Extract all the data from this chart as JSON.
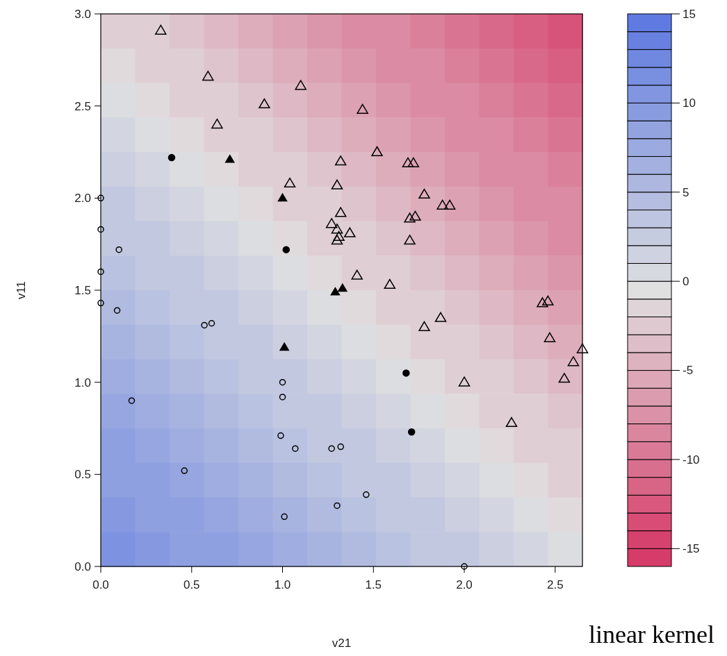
{
  "chart_data": [
    {
      "type": "heatmap",
      "categories": [
        null,
        null,
        null,
        null,
        null,
        null,
        null,
        null,
        null,
        null,
        null,
        null,
        null,
        null
      ],
      "y_categories": [
        null,
        null,
        null,
        null,
        null,
        null,
        null,
        null,
        null,
        null,
        null,
        null,
        null,
        null,
        null,
        null
      ],
      "clim": [
        -16,
        15
      ],
      "cticks": [
        -15,
        -10,
        -5,
        0,
        5,
        10,
        15
      ],
      "colors": [
        "#d63c6a",
        "#e0e0e0",
        "#5b77e0"
      ],
      "cells": [
        [
          -2,
          -2,
          -3,
          -4,
          -5,
          -6,
          -7,
          -8,
          -8,
          -9,
          -10,
          -11,
          -12,
          -13
        ],
        [
          -1,
          -2,
          -2,
          -3,
          -4,
          -5,
          -6,
          -7,
          -8,
          -8,
          -9,
          -10,
          -11,
          -12
        ],
        [
          0,
          -1,
          -2,
          -2,
          -3,
          -4,
          -5,
          -6,
          -7,
          -8,
          -8,
          -9,
          -10,
          -11
        ],
        [
          1,
          0,
          -1,
          -2,
          -2,
          -3,
          -4,
          -5,
          -6,
          -7,
          -8,
          -8,
          -9,
          -10
        ],
        [
          2,
          1,
          0,
          -1,
          -2,
          -2,
          -3,
          -4,
          -5,
          -6,
          -7,
          -8,
          -8,
          -9
        ],
        [
          3,
          2,
          1,
          0,
          -1,
          -2,
          -2,
          -3,
          -4,
          -5,
          -6,
          -7,
          -8,
          -8
        ],
        [
          3,
          3,
          2,
          1,
          0,
          -1,
          -2,
          -2,
          -3,
          -4,
          -5,
          -6,
          -7,
          -8
        ],
        [
          4,
          3,
          3,
          2,
          1,
          0,
          -1,
          -2,
          -2,
          -3,
          -4,
          -5,
          -6,
          -7
        ],
        [
          5,
          4,
          3,
          3,
          2,
          1,
          0,
          -1,
          -2,
          -2,
          -3,
          -4,
          -5,
          -6
        ],
        [
          6,
          5,
          4,
          3,
          3,
          2,
          1,
          0,
          -1,
          -2,
          -2,
          -3,
          -4,
          -5
        ],
        [
          7,
          6,
          5,
          4,
          3,
          3,
          2,
          1,
          0,
          -1,
          -2,
          -2,
          -3,
          -4
        ],
        [
          8,
          7,
          6,
          5,
          4,
          3,
          3,
          2,
          1,
          0,
          -1,
          -2,
          -2,
          -3
        ],
        [
          9,
          8,
          7,
          6,
          5,
          4,
          3,
          3,
          2,
          1,
          0,
          -1,
          -2,
          -2
        ],
        [
          9,
          9,
          8,
          7,
          6,
          5,
          4,
          3,
          3,
          2,
          1,
          0,
          -1,
          -2
        ],
        [
          10,
          9,
          9,
          8,
          7,
          6,
          5,
          4,
          3,
          3,
          2,
          1,
          0,
          -1
        ],
        [
          11,
          10,
          9,
          9,
          8,
          7,
          6,
          5,
          4,
          3,
          3,
          2,
          1,
          0
        ]
      ]
    },
    {
      "type": "scatter",
      "xlabel": "v21",
      "ylabel": "v11",
      "annotations": [
        "linear kernel"
      ],
      "xlim": [
        0,
        2.65
      ],
      "ylim": [
        0,
        3
      ],
      "xticks": [
        {
          "value": 0,
          "label": "0.0"
        },
        {
          "value": 0.5,
          "label": "0.5"
        },
        {
          "value": 1,
          "label": "1.0"
        },
        {
          "value": 1.5,
          "label": "1.5"
        },
        {
          "value": 2,
          "label": "2.0"
        },
        {
          "value": 2.5,
          "label": "2.5"
        }
      ],
      "yticks": [
        {
          "value": 0,
          "label": "0.0"
        },
        {
          "value": 0.5,
          "label": "0.5"
        },
        {
          "value": 1,
          "label": "1.0"
        },
        {
          "value": 1.5,
          "label": "1.5"
        },
        {
          "value": 2,
          "label": "2.0"
        },
        {
          "value": 2.5,
          "label": "2.5"
        },
        {
          "value": 3,
          "label": "3.0"
        }
      ],
      "series": [
        {
          "type": "scatter",
          "marker": "circle",
          "color": "#000000",
          "x": [
            0,
            0,
            0.1,
            0,
            0,
            0.09,
            0.57,
            0.61,
            0.17,
            1.0,
            1.0,
            0.99,
            1.07,
            1.27,
            1.32,
            0.46,
            1.46,
            1.3,
            1.01,
            2.0
          ],
          "values": [
            2.0,
            1.83,
            1.72,
            1.6,
            1.43,
            1.39,
            1.31,
            1.32,
            0.9,
            1.0,
            0.92,
            0.71,
            0.64,
            0.64,
            0.65,
            0.52,
            0.39,
            0.33,
            0.27,
            0.0
          ]
        },
        {
          "type": "scatter",
          "marker": "circle",
          "color": "#000000",
          "colors": [
            "#000000",
            "#000000",
            "#000000",
            "#000000"
          ],
          "x": [
            0.39,
            1.02,
            1.68,
            1.71
          ],
          "values": [
            2.22,
            1.72,
            1.05,
            0.73
          ]
        },
        {
          "type": "scatter",
          "marker": "triangle",
          "color": "#000000",
          "colors": [
            "#000000",
            "#000000",
            "#000000",
            "#000000",
            "#000000"
          ],
          "x": [
            0.71,
            1.0,
            1.29,
            1.33,
            1.01
          ],
          "values": [
            2.21,
            2.0,
            1.49,
            1.51,
            1.19
          ]
        },
        {
          "type": "scatter",
          "marker": "triangle",
          "color": "#000000",
          "x": [
            0.33,
            0.59,
            1.1,
            0.9,
            0.64,
            1.44,
            1.52,
            1.32,
            1.69,
            1.72,
            1.04,
            1.3,
            1.78,
            1.88,
            1.92,
            1.32,
            1.7,
            1.73,
            1.27,
            1.3,
            1.37,
            1.31,
            1.3,
            1.7,
            1.41,
            1.59,
            2.43,
            2.46,
            1.87,
            1.78,
            2.47,
            2.65,
            2.6,
            2.55,
            2.0,
            2.26
          ],
          "values": [
            2.91,
            2.66,
            2.61,
            2.51,
            2.4,
            2.48,
            2.25,
            2.2,
            2.19,
            2.19,
            2.08,
            2.07,
            2.02,
            1.96,
            1.96,
            1.92,
            1.89,
            1.9,
            1.86,
            1.83,
            1.81,
            1.79,
            1.77,
            1.77,
            1.58,
            1.53,
            1.43,
            1.44,
            1.35,
            1.3,
            1.24,
            1.18,
            1.11,
            1.02,
            1.0,
            0.78
          ]
        }
      ]
    }
  ]
}
